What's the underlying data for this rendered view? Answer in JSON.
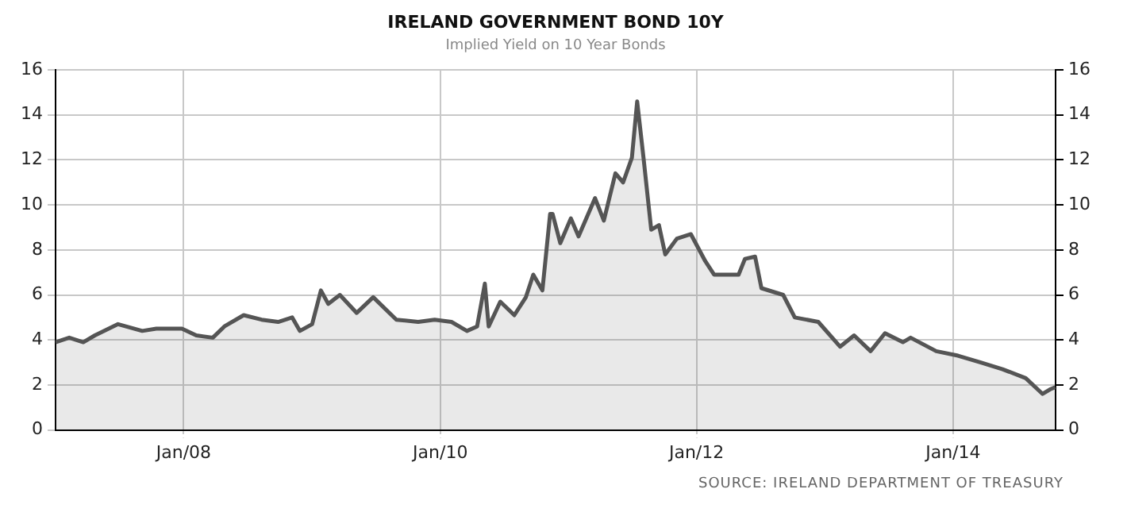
{
  "chart_data": {
    "type": "area",
    "title": "IRELAND GOVERNMENT BOND 10Y",
    "subtitle": "Implied Yield on 10 Year Bonds",
    "annotations": [
      "SOURCE: IRELAND DEPARTMENT OF TREASURY"
    ],
    "x": [
      "2007-01-01",
      "2007-02-09",
      "2007-03-21",
      "2007-04-23",
      "2007-06-28",
      "2007-09-05",
      "2007-10-15",
      "2007-12-27",
      "2008-02-06",
      "2008-03-24",
      "2008-04-26",
      "2008-06-20",
      "2008-08-10",
      "2008-09-26",
      "2008-11-05",
      "2008-11-27",
      "2009-01-01",
      "2009-01-26",
      "2009-02-16",
      "2009-03-21",
      "2009-05-08",
      "2009-06-24",
      "2009-08-29",
      "2009-10-30",
      "2009-12-16",
      "2010-02-02",
      "2010-03-18",
      "2010-04-16",
      "2010-05-08",
      "2010-05-19",
      "2010-06-21",
      "2010-07-31",
      "2010-09-02",
      "2010-09-23",
      "2010-10-19",
      "2010-11-10",
      "2010-11-17",
      "2010-12-09",
      "2011-01-08",
      "2011-01-30",
      "2011-03-18",
      "2011-04-12",
      "2011-05-15",
      "2011-06-06",
      "2011-07-01",
      "2011-07-16",
      "2011-08-03",
      "2011-08-25",
      "2011-09-16",
      "2011-10-04",
      "2011-11-06",
      "2011-12-16",
      "2012-01-26",
      "2012-02-20",
      "2012-04-30",
      "2012-05-18",
      "2012-06-16",
      "2012-07-04",
      "2012-09-04",
      "2012-10-07",
      "2012-12-13",
      "2013-02-13",
      "2013-03-25",
      "2013-05-11",
      "2013-06-21",
      "2013-08-11",
      "2013-09-02",
      "2013-11-14",
      "2014-01-15",
      "2014-03-21",
      "2014-05-22",
      "2014-07-27",
      "2014-09-13",
      "2014-10-04",
      "2014-10-19"
    ],
    "series": [
      {
        "color": "#555555",
        "values": [
          3.9,
          4.1,
          3.9,
          4.2,
          4.7,
          4.4,
          4.5,
          4.5,
          4.2,
          4.1,
          4.6,
          5.1,
          4.9,
          4.8,
          5.0,
          4.4,
          4.7,
          6.2,
          5.6,
          6.0,
          5.2,
          5.9,
          4.9,
          4.8,
          4.9,
          4.8,
          4.4,
          4.6,
          6.5,
          4.6,
          5.7,
          5.1,
          5.9,
          6.9,
          6.2,
          9.6,
          9.6,
          8.3,
          9.4,
          8.6,
          10.3,
          9.3,
          11.4,
          11.0,
          12.1,
          14.6,
          12.1,
          8.9,
          9.1,
          7.8,
          8.5,
          8.7,
          7.5,
          6.9,
          6.9,
          7.6,
          7.7,
          6.3,
          6.0,
          5.0,
          4.8,
          3.7,
          4.2,
          3.5,
          4.3,
          3.9,
          4.1,
          3.5,
          3.3,
          3.0,
          2.7,
          2.3,
          1.6,
          1.8,
          1.9
        ]
      }
    ],
    "xlim": [
      "2007-01-01",
      "2014-10-20"
    ],
    "xticks": [
      {
        "value": "2008-01-01",
        "label": "Jan/08"
      },
      {
        "value": "2010-01-01",
        "label": "Jan/10"
      },
      {
        "value": "2012-01-01",
        "label": "Jan/12"
      },
      {
        "value": "2014-01-01",
        "label": "Jan/14"
      }
    ],
    "ylim": [
      0,
      16
    ],
    "yticks": [
      0,
      2,
      4,
      6,
      8,
      10,
      12,
      14,
      16
    ],
    "y2lim": [
      0,
      16
    ],
    "y2ticks": [
      0,
      2,
      4,
      6,
      8,
      10,
      12,
      14,
      16
    ],
    "grid": true
  }
}
